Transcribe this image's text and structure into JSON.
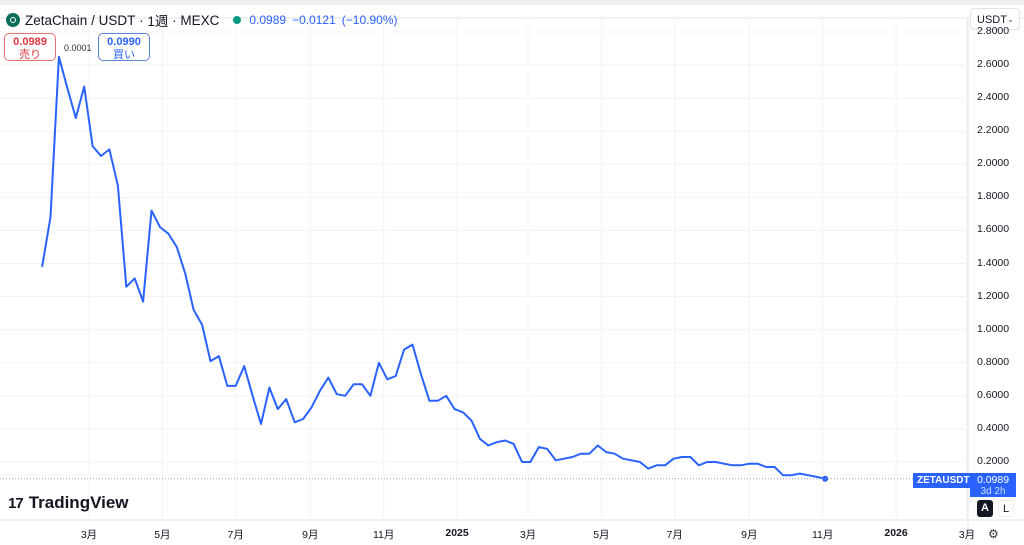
{
  "header": {
    "symbol_name": "ZetaChain",
    "pair": "/ USDT",
    "interval": "1週",
    "exchange": "MEXC",
    "last_price": "0.0989",
    "change": "−0.0121",
    "change_pct": "(−10.90%)",
    "status_color": "#089981"
  },
  "trade": {
    "sell_price": "0.0989",
    "sell_label": "売り",
    "spread": "0.0001",
    "buy_price": "0.0990",
    "buy_label": "買い"
  },
  "currency_select": {
    "value": "USDT",
    "chevron": "chevron-down-icon"
  },
  "price_scale": {
    "ticks": [
      "2.8000",
      "2.6000",
      "2.4000",
      "2.2000",
      "2.0000",
      "1.8000",
      "1.6000",
      "1.4000",
      "1.2000",
      "1.0000",
      "0.8000",
      "0.6000",
      "0.4000",
      "0.2000"
    ],
    "symbol_tag": "ZETAUSDT",
    "current_price": "0.0989",
    "countdown": "3d 2h",
    "auto_label": "A",
    "log_label": "L"
  },
  "time_scale": {
    "ticks": [
      {
        "label": "3月",
        "date": "2024-03-01",
        "bold": false
      },
      {
        "label": "5月",
        "date": "2024-05-01",
        "bold": false
      },
      {
        "label": "7月",
        "date": "2024-07-01",
        "bold": false
      },
      {
        "label": "9月",
        "date": "2024-09-01",
        "bold": false
      },
      {
        "label": "11月",
        "date": "2024-11-01",
        "bold": false
      },
      {
        "label": "2025",
        "date": "2025-01-01",
        "bold": true
      },
      {
        "label": "3月",
        "date": "2025-03-01",
        "bold": false
      },
      {
        "label": "5月",
        "date": "2025-05-01",
        "bold": false
      },
      {
        "label": "7月",
        "date": "2025-07-01",
        "bold": false
      },
      {
        "label": "9月",
        "date": "2025-09-01",
        "bold": false
      },
      {
        "label": "11月",
        "date": "2025-11-01",
        "bold": false
      },
      {
        "label": "2026",
        "date": "2026-01-01",
        "bold": true
      },
      {
        "label": "3月",
        "date": "2026-03-01",
        "bold": false
      }
    ],
    "settings_icon": "gear-icon"
  },
  "branding": {
    "name": "TradingView"
  },
  "chart_data": {
    "type": "line",
    "series_color": "#2962ff",
    "ylim": [
      0.0,
      2.8
    ],
    "grid": true,
    "x": [
      "2024-01-22",
      "2024-01-29",
      "2024-02-05",
      "2024-02-12",
      "2024-02-19",
      "2024-02-26",
      "2024-03-04",
      "2024-03-11",
      "2024-03-18",
      "2024-03-25",
      "2024-04-01",
      "2024-04-08",
      "2024-04-15",
      "2024-04-22",
      "2024-04-29",
      "2024-05-06",
      "2024-05-13",
      "2024-05-20",
      "2024-05-27",
      "2024-06-03",
      "2024-06-10",
      "2024-06-17",
      "2024-06-24",
      "2024-07-01",
      "2024-07-08",
      "2024-07-15",
      "2024-07-22",
      "2024-07-29",
      "2024-08-05",
      "2024-08-12",
      "2024-08-19",
      "2024-08-26",
      "2024-09-02",
      "2024-09-09",
      "2024-09-16",
      "2024-09-23",
      "2024-09-30",
      "2024-10-07",
      "2024-10-14",
      "2024-10-21",
      "2024-10-28",
      "2024-11-04",
      "2024-11-11",
      "2024-11-18",
      "2024-11-25",
      "2024-12-02",
      "2024-12-09",
      "2024-12-16",
      "2024-12-23",
      "2024-12-30",
      "2025-01-06",
      "2025-01-13",
      "2025-01-20",
      "2025-01-27",
      "2025-02-03",
      "2025-02-10",
      "2025-02-17",
      "2025-02-24",
      "2025-03-03",
      "2025-03-10",
      "2025-03-17",
      "2025-03-24",
      "2025-03-31",
      "2025-04-07",
      "2025-04-14",
      "2025-04-21",
      "2025-04-28",
      "2025-05-05",
      "2025-05-12",
      "2025-05-19",
      "2025-05-26",
      "2025-06-02",
      "2025-06-09",
      "2025-06-16",
      "2025-06-23",
      "2025-06-30",
      "2025-07-07",
      "2025-07-14",
      "2025-07-21",
      "2025-07-28",
      "2025-08-04",
      "2025-08-11",
      "2025-08-18",
      "2025-08-25",
      "2025-09-01",
      "2025-09-08",
      "2025-09-15",
      "2025-09-22",
      "2025-09-29",
      "2025-10-06",
      "2025-10-13",
      "2025-10-20",
      "2025-10-27",
      "2025-11-03"
    ],
    "values": [
      1.38,
      1.68,
      2.65,
      2.46,
      2.28,
      2.47,
      2.11,
      2.05,
      2.09,
      1.87,
      1.26,
      1.31,
      1.17,
      1.72,
      1.62,
      1.58,
      1.5,
      1.34,
      1.12,
      1.03,
      0.81,
      0.84,
      0.66,
      0.66,
      0.78,
      0.6,
      0.43,
      0.65,
      0.52,
      0.58,
      0.44,
      0.46,
      0.53,
      0.63,
      0.71,
      0.61,
      0.6,
      0.67,
      0.67,
      0.6,
      0.8,
      0.7,
      0.72,
      0.88,
      0.91,
      0.73,
      0.57,
      0.57,
      0.6,
      0.52,
      0.5,
      0.45,
      0.34,
      0.3,
      0.32,
      0.33,
      0.31,
      0.2,
      0.2,
      0.29,
      0.28,
      0.21,
      0.22,
      0.23,
      0.25,
      0.25,
      0.3,
      0.26,
      0.25,
      0.22,
      0.21,
      0.2,
      0.16,
      0.18,
      0.18,
      0.22,
      0.23,
      0.23,
      0.18,
      0.2,
      0.2,
      0.19,
      0.18,
      0.18,
      0.19,
      0.19,
      0.17,
      0.17,
      0.12,
      0.12,
      0.13,
      0.12,
      0.11,
      0.0989
    ]
  }
}
